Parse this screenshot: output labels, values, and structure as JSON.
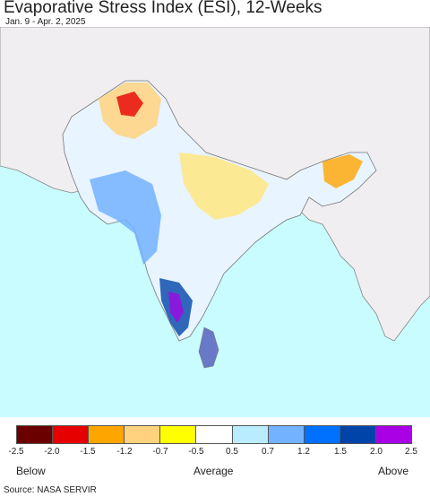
{
  "header": {
    "title": "Evaporative Stress Index (ESI), 12-Weeks",
    "subtitle": "Jan. 9 - Apr. 2, 2025"
  },
  "legend": {
    "colors": [
      "#6b0000",
      "#e60000",
      "#ffa500",
      "#ffd27f",
      "#ffff00",
      "#ffffff",
      "#b9ecff",
      "#73b2ff",
      "#0070ff",
      "#0044aa",
      "#a900e6"
    ],
    "ticks": [
      "-2.5",
      "-2.0",
      "-1.5",
      "-1.2",
      "-0.7",
      "-0.5",
      "0.5",
      "0.7",
      "1.2",
      "1.5",
      "2.0",
      "2.5"
    ],
    "below_label": "Below",
    "average_label": "Average",
    "above_label": "Above"
  },
  "map": {
    "ocean_color": "#c8fcff",
    "land_nodata_color": "#f0eef0",
    "border_color": "#888888"
  },
  "footer": {
    "source": "Source: NASA SERVIR"
  }
}
